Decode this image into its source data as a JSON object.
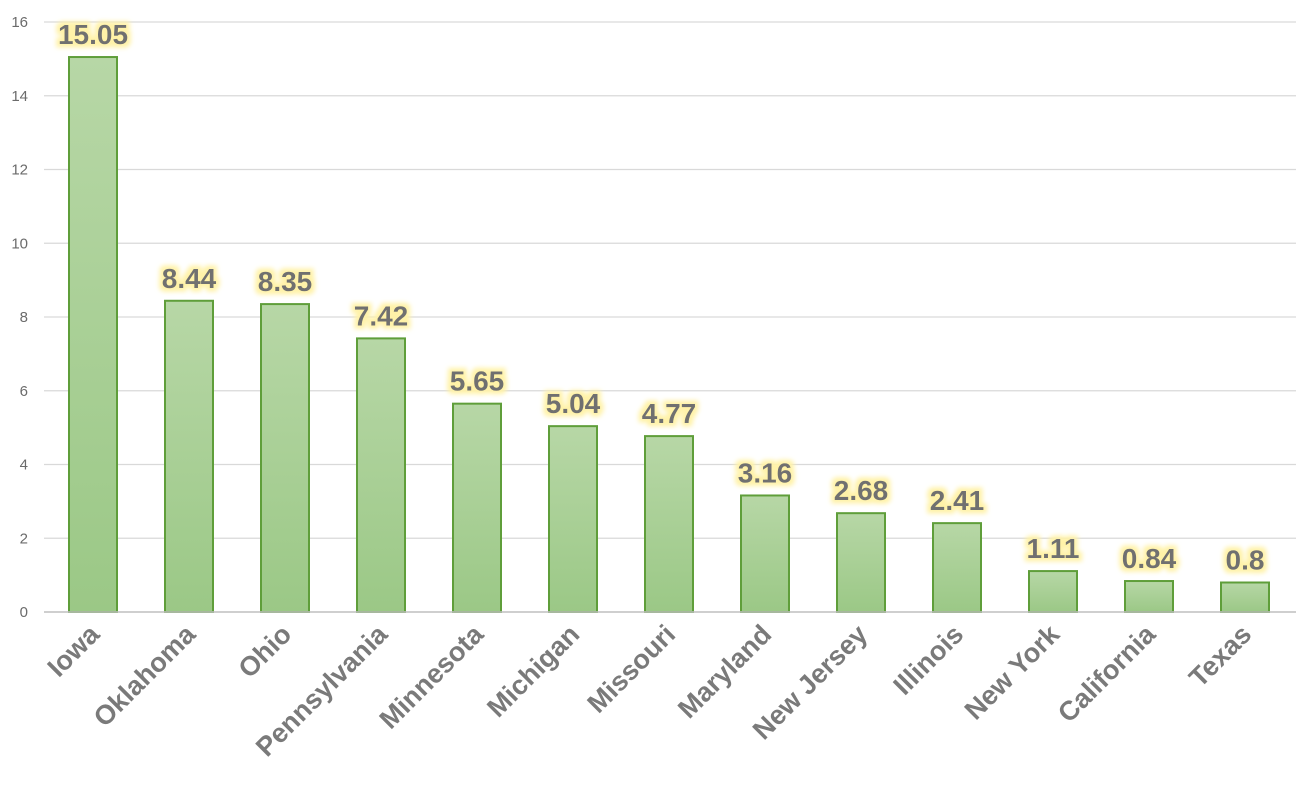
{
  "chart_data": {
    "type": "bar",
    "categories": [
      "Iowa",
      "Oklahoma",
      "Ohio",
      "Pennsylvania",
      "Minnesota",
      "Michigan",
      "Missouri",
      "Maryland",
      "New Jersey",
      "Illinois",
      "New York",
      "California",
      "Texas"
    ],
    "values": [
      15.05,
      8.44,
      8.35,
      7.42,
      5.65,
      5.04,
      4.77,
      3.16,
      2.68,
      2.41,
      1.11,
      0.84,
      0.8
    ],
    "data_labels": [
      "15.05",
      "8.44",
      "8.35",
      "7.42",
      "5.65",
      "5.04",
      "4.77",
      "3.16",
      "2.68",
      "2.41",
      "1.11",
      "0.84",
      "0.8"
    ],
    "title": "",
    "xlabel": "",
    "ylabel": "",
    "ylim": [
      0,
      16
    ],
    "yticks": [
      0,
      2,
      4,
      6,
      8,
      10,
      12,
      14,
      16
    ],
    "grid": true,
    "legend": "none",
    "colors": {
      "bar_top": "#b7d7a6",
      "bar_bottom": "#9bc886",
      "bar_border": "#5f9e3a",
      "label_glow": "#fff2a8"
    }
  }
}
